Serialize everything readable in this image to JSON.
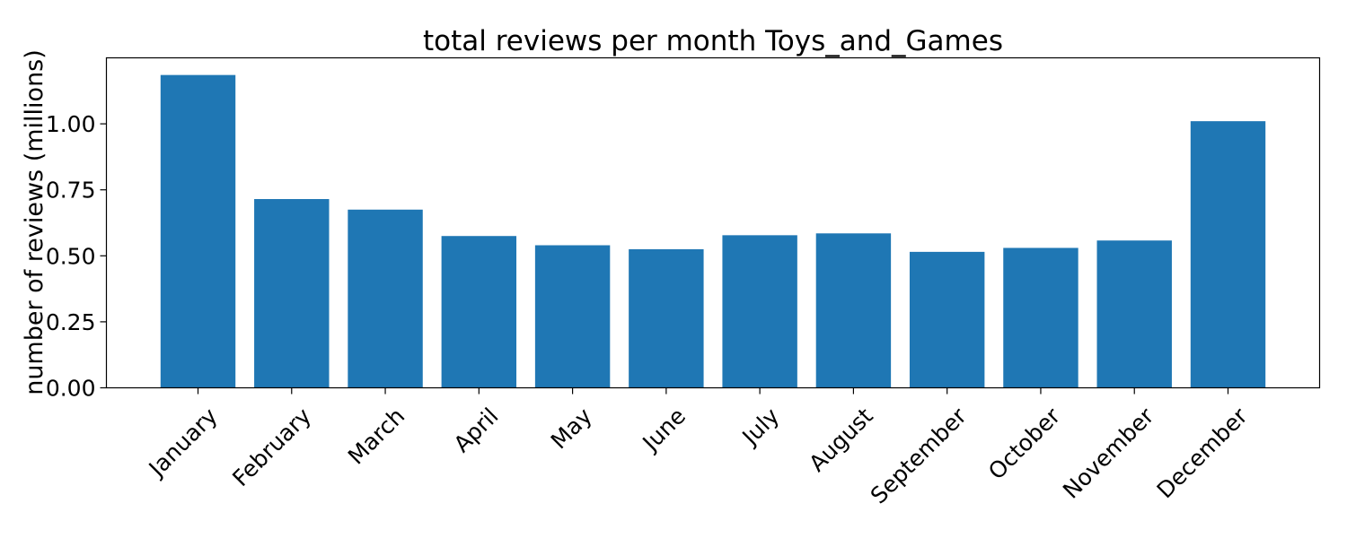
{
  "chart_data": {
    "type": "bar",
    "title": "total reviews per month Toys_and_Games",
    "xlabel": "",
    "ylabel": "number of reviews (millions)",
    "categories": [
      "January",
      "February",
      "March",
      "April",
      "May",
      "June",
      "July",
      "August",
      "September",
      "October",
      "November",
      "December"
    ],
    "values": [
      1.185,
      0.715,
      0.675,
      0.575,
      0.54,
      0.525,
      0.578,
      0.585,
      0.515,
      0.53,
      0.558,
      1.01
    ],
    "ylim": [
      0,
      1.25
    ],
    "yticks": [
      "0.00",
      "0.25",
      "0.50",
      "0.75",
      "1.00"
    ],
    "grid": false,
    "bar_color": "#1f77b4"
  }
}
